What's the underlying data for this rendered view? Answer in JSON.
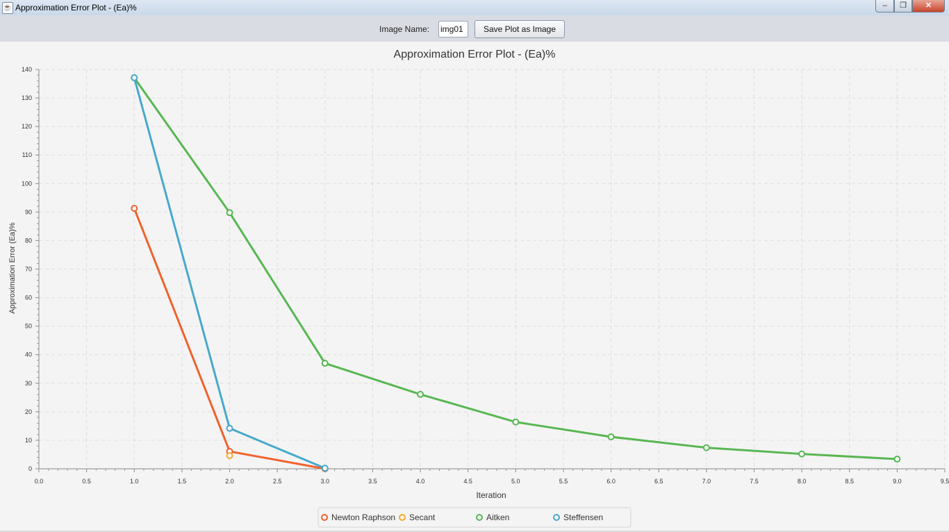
{
  "window": {
    "title": "Approximation Error Plot - (Ea)%",
    "minimize": "–",
    "maximize": "❐",
    "close": "✕"
  },
  "toolbar": {
    "image_name_label": "Image Name:",
    "image_name_value": "img01",
    "save_button": "Save Plot as Image"
  },
  "chart_data": {
    "type": "line",
    "title": "Approximation Error Plot - (Ea)%",
    "xlabel": "Iteration",
    "ylabel": "Approximation Error (Ea)%",
    "xlim": [
      0,
      9.5
    ],
    "ylim": [
      0,
      140
    ],
    "x_ticks": [
      0.0,
      0.5,
      1.0,
      1.5,
      2.0,
      2.5,
      3.0,
      3.5,
      4.0,
      4.5,
      5.0,
      5.5,
      6.0,
      6.5,
      7.0,
      7.5,
      8.0,
      8.5,
      9.0,
      9.5
    ],
    "y_ticks": [
      0,
      10,
      20,
      30,
      40,
      50,
      60,
      70,
      80,
      90,
      100,
      110,
      120,
      130,
      140
    ],
    "grid": true,
    "legend_position": "bottom",
    "series": [
      {
        "name": "Newton Raphson",
        "color": "#f0622c",
        "x": [
          1,
          2,
          3
        ],
        "y": [
          91.3,
          6.1,
          0.0
        ]
      },
      {
        "name": "Secant",
        "color": "#f7a82a",
        "x": [
          2
        ],
        "y": [
          4.6
        ]
      },
      {
        "name": "Aitken",
        "color": "#58b752",
        "x": [
          1,
          2,
          3,
          4,
          5,
          6,
          7,
          8,
          9
        ],
        "y": [
          137.1,
          89.8,
          37.0,
          26.1,
          16.4,
          11.2,
          7.4,
          5.2,
          3.4
        ]
      },
      {
        "name": "Steffensen",
        "color": "#47a9cb",
        "x": [
          1,
          2,
          3
        ],
        "y": [
          137.1,
          14.2,
          0.2
        ]
      }
    ]
  }
}
